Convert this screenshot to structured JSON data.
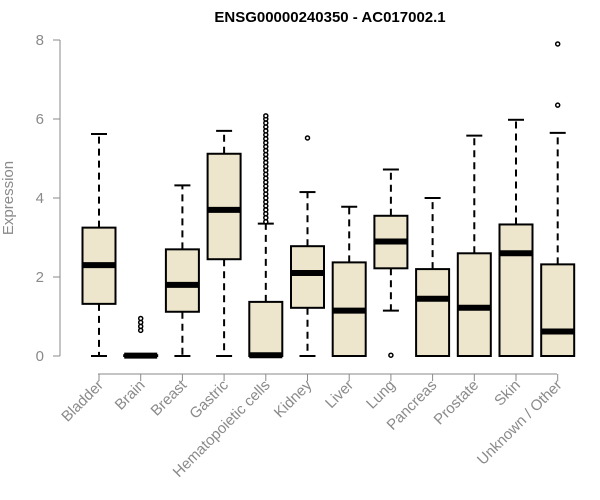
{
  "chart_data": {
    "type": "box",
    "title": "ENSG00000240350 - AC017002.1",
    "xlabel": "",
    "ylabel": "Expression",
    "ylim": [
      0,
      8
    ],
    "yticks": [
      0,
      2,
      4,
      6,
      8
    ],
    "grid": false,
    "colors": {
      "box_fill": "#ede6cc",
      "box_stroke": "#000000",
      "axis": "#8a8a8a"
    },
    "categories": [
      "Bladder",
      "Brain",
      "Breast",
      "Gastric",
      "Hematopoietic cells",
      "Kidney",
      "Liver",
      "Lung",
      "Pancreas",
      "Prostate",
      "Skin",
      "Unknown / Other"
    ],
    "boxes": [
      {
        "min": 0,
        "q1": 1.32,
        "median": 2.3,
        "q3": 3.25,
        "max": 5.62,
        "outliers": []
      },
      {
        "min": 0,
        "q1": 0,
        "median": 0.01,
        "q3": 0.02,
        "max": 0.04,
        "outliers": [
          0.65,
          0.75,
          0.85,
          0.95
        ]
      },
      {
        "min": 0,
        "q1": 1.12,
        "median": 1.8,
        "q3": 2.7,
        "max": 4.32,
        "outliers": []
      },
      {
        "min": 0,
        "q1": 2.45,
        "median": 3.7,
        "q3": 5.12,
        "max": 5.7,
        "outliers": []
      },
      {
        "min": 0,
        "q1": 0,
        "median": 0.02,
        "q3": 1.37,
        "max": 3.35,
        "outliers": [
          3.4,
          3.5,
          3.6,
          3.7,
          3.8,
          3.9,
          4.0,
          4.1,
          4.2,
          4.3,
          4.4,
          4.5,
          4.6,
          4.7,
          4.8,
          4.9,
          5.0,
          5.1,
          5.2,
          5.3,
          5.4,
          5.5,
          5.6,
          5.7,
          5.8,
          5.9,
          6.0,
          6.08
        ]
      },
      {
        "min": 0,
        "q1": 1.22,
        "median": 2.1,
        "q3": 2.78,
        "max": 4.15,
        "outliers": [
          5.52
        ]
      },
      {
        "min": 0,
        "q1": 0,
        "median": 1.15,
        "q3": 2.37,
        "max": 3.78,
        "outliers": []
      },
      {
        "min": 1.15,
        "q1": 2.22,
        "median": 2.9,
        "q3": 3.55,
        "max": 4.72,
        "outliers": [
          0.02
        ]
      },
      {
        "min": 0,
        "q1": 0,
        "median": 1.45,
        "q3": 2.2,
        "max": 4.0,
        "outliers": []
      },
      {
        "min": 0,
        "q1": 0,
        "median": 1.22,
        "q3": 2.6,
        "max": 5.58,
        "outliers": []
      },
      {
        "min": 0,
        "q1": 0,
        "median": 2.6,
        "q3": 3.33,
        "max": 5.98,
        "outliers": []
      },
      {
        "min": 0,
        "q1": 0,
        "median": 0.62,
        "q3": 2.32,
        "max": 5.65,
        "outliers": [
          6.35,
          7.9
        ]
      }
    ]
  }
}
